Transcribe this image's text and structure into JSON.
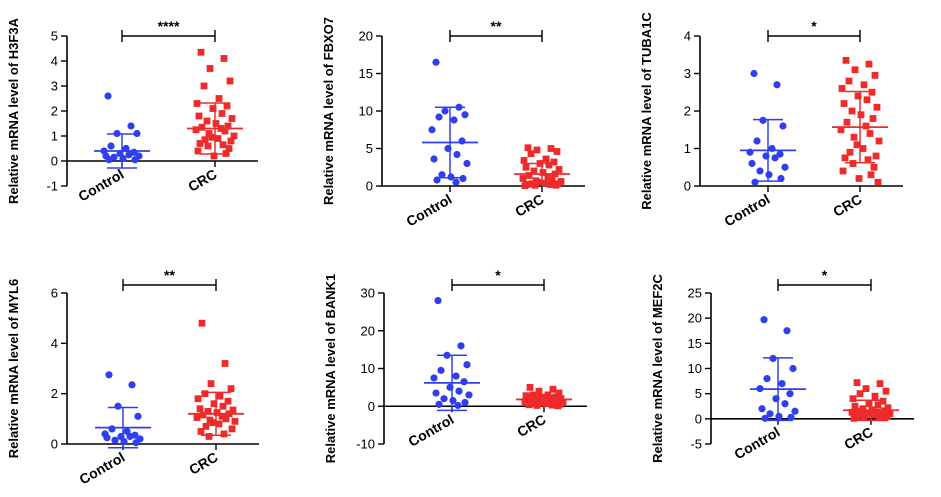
{
  "colors": {
    "control": "#2f3ff0",
    "crc": "#ef2a2a",
    "axis": "#000000"
  },
  "chart_data": [
    {
      "type": "scatter",
      "ylabel": "Relative mRNA level of H3F3A",
      "categories": [
        "Control",
        "CRC"
      ],
      "significance": "****",
      "ylim": [
        -1,
        5
      ],
      "yticks": [
        -1,
        0,
        1,
        2,
        3,
        4,
        5
      ],
      "series": [
        {
          "name": "Control",
          "mean": 0.4,
          "sd": 0.68,
          "values": [
            2.6,
            1.4,
            1.1,
            1.1,
            0.6,
            0.5,
            0.4,
            0.35,
            0.3,
            0.25,
            0.2,
            0.2,
            0.15,
            0.1,
            0.05,
            0.05
          ]
        },
        {
          "name": "CRC",
          "mean": 1.3,
          "sd": 1.02,
          "values": [
            4.35,
            4.1,
            3.7,
            3.2,
            3.0,
            2.5,
            2.3,
            2.2,
            2.1,
            1.9,
            1.8,
            1.7,
            1.6,
            1.5,
            1.4,
            1.35,
            1.3,
            1.25,
            1.2,
            1.1,
            1.0,
            0.95,
            0.9,
            0.85,
            0.8,
            0.7,
            0.65,
            0.6,
            0.5,
            0.4,
            0.3,
            0.2
          ]
        }
      ]
    },
    {
      "type": "scatter",
      "ylabel": "Relative mRNA level of FBXO7",
      "categories": [
        "Control",
        "CRC"
      ],
      "significance": "**",
      "ylim": [
        0,
        20
      ],
      "yticks": [
        0,
        5,
        10,
        15,
        20
      ],
      "series": [
        {
          "name": "Control",
          "mean": 5.8,
          "sd": 4.7,
          "values": [
            16.5,
            10.5,
            10.0,
            9.5,
            9.2,
            8.8,
            7.5,
            6.0,
            5.0,
            4.2,
            3.6,
            3.0,
            1.5,
            1.2,
            1.0,
            0.8,
            0.5
          ]
        },
        {
          "name": "CRC",
          "mean": 1.6,
          "sd": 1.4,
          "values": [
            5.1,
            5.0,
            4.8,
            4.6,
            4.3,
            3.6,
            3.4,
            3.2,
            3.0,
            2.8,
            2.5,
            2.2,
            2.0,
            1.8,
            1.6,
            1.4,
            1.2,
            1.0,
            0.8,
            0.7,
            0.6,
            0.5,
            0.4,
            0.3,
            0.3,
            0.2,
            0.2,
            0.1,
            0.1,
            0.05
          ]
        }
      ]
    },
    {
      "type": "scatter",
      "ylabel": "Relative mRNA level of TUBA1C",
      "categories": [
        "Control",
        "CRC"
      ],
      "significance": "*",
      "ylim": [
        0,
        4
      ],
      "yticks": [
        0,
        1,
        2,
        3,
        4
      ],
      "series": [
        {
          "name": "Control",
          "mean": 0.95,
          "sd": 0.82,
          "values": [
            3.0,
            2.7,
            1.75,
            1.6,
            1.2,
            1.0,
            0.9,
            0.85,
            0.8,
            0.75,
            0.6,
            0.5,
            0.4,
            0.3,
            0.2,
            0.1
          ]
        },
        {
          "name": "CRC",
          "mean": 1.57,
          "sd": 0.95,
          "values": [
            3.35,
            3.25,
            3.1,
            2.95,
            2.8,
            2.7,
            2.6,
            2.5,
            2.4,
            2.3,
            2.2,
            2.1,
            2.0,
            1.9,
            1.8,
            1.7,
            1.6,
            1.5,
            1.4,
            1.3,
            1.2,
            1.1,
            1.0,
            0.9,
            0.8,
            0.75,
            0.7,
            0.6,
            0.5,
            0.4,
            0.3,
            0.2,
            0.1
          ]
        }
      ]
    },
    {
      "type": "scatter",
      "ylabel": "Relative mRNA level of MYL6",
      "categories": [
        "Control",
        "CRC"
      ],
      "significance": "**",
      "ylim": [
        0,
        6
      ],
      "yticks": [
        0,
        2,
        4,
        6
      ],
      "series": [
        {
          "name": "Control",
          "mean": 0.65,
          "sd": 0.8,
          "values": [
            2.75,
            2.35,
            1.5,
            1.1,
            0.6,
            0.5,
            0.4,
            0.35,
            0.3,
            0.3,
            0.25,
            0.2,
            0.15,
            0.1,
            0.05
          ]
        },
        {
          "name": "CRC",
          "mean": 1.2,
          "sd": 0.85,
          "values": [
            4.8,
            3.2,
            2.4,
            2.2,
            2.0,
            1.9,
            1.8,
            1.7,
            1.6,
            1.5,
            1.4,
            1.35,
            1.3,
            1.25,
            1.2,
            1.15,
            1.1,
            1.05,
            1.0,
            0.95,
            0.9,
            0.85,
            0.8,
            0.7,
            0.6,
            0.5,
            0.4,
            0.3
          ]
        }
      ]
    },
    {
      "type": "scatter",
      "ylabel": "Relative mRNA level of BANK1",
      "categories": [
        "Control",
        "CRC"
      ],
      "significance": "*",
      "ylim": [
        -10,
        30
      ],
      "yticks": [
        -10,
        0,
        10,
        20,
        30
      ],
      "series": [
        {
          "name": "Control",
          "mean": 6.2,
          "sd": 7.3,
          "values": [
            28.0,
            16.0,
            13.5,
            11.0,
            9.5,
            8.0,
            7.5,
            6.5,
            5.0,
            4.0,
            3.5,
            3.0,
            2.0,
            1.5,
            1.0,
            0.5,
            0.2
          ]
        },
        {
          "name": "CRC",
          "mean": 1.8,
          "sd": 1.1,
          "values": [
            5.0,
            4.5,
            4.0,
            3.5,
            3.0,
            3.0,
            2.8,
            2.5,
            2.4,
            2.2,
            2.0,
            2.0,
            1.8,
            1.6,
            1.5,
            1.4,
            1.3,
            1.2,
            1.1,
            1.0,
            0.9,
            0.8,
            0.7,
            0.6,
            0.5,
            0.4,
            0.3,
            0.2,
            0.1
          ]
        }
      ]
    },
    {
      "type": "scatter",
      "ylabel": "Relative mRNA level of MEF2C",
      "categories": [
        "Control",
        "CRC"
      ],
      "significance": "*",
      "ylim": [
        -5,
        25
      ],
      "yticks": [
        -5,
        0,
        5,
        10,
        15,
        20,
        25
      ],
      "series": [
        {
          "name": "Control",
          "mean": 5.9,
          "sd": 6.2,
          "values": [
            19.7,
            17.5,
            12.0,
            10.0,
            8.0,
            7.0,
            6.0,
            5.0,
            4.0,
            3.0,
            2.0,
            1.5,
            1.0,
            0.5,
            0.3,
            0.1
          ]
        },
        {
          "name": "CRC",
          "mean": 1.7,
          "sd": 2.0,
          "values": [
            7.2,
            7.0,
            6.0,
            5.5,
            5.0,
            4.5,
            4.0,
            3.5,
            3.0,
            2.8,
            2.5,
            2.2,
            2.0,
            1.8,
            1.6,
            1.5,
            1.4,
            1.3,
            1.2,
            1.1,
            1.0,
            0.9,
            0.8,
            0.7,
            0.6,
            0.5,
            0.4,
            0.3,
            0.2,
            0.1
          ]
        }
      ]
    }
  ]
}
